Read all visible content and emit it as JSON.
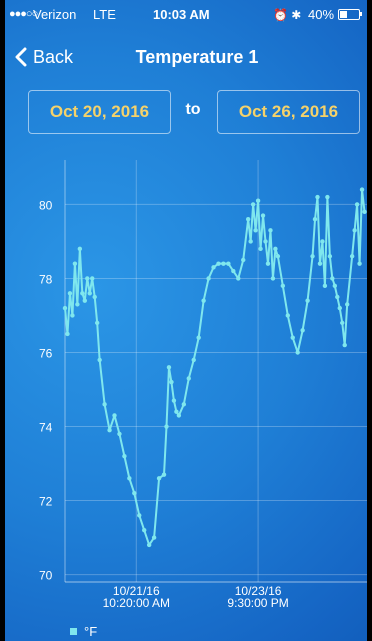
{
  "status_bar": {
    "signal": "●●●○○",
    "carrier": "Verizon",
    "network": "LTE",
    "time": "10:03 AM",
    "icons": "⏰ ✱",
    "battery": "40%",
    "battery_level": 0.4
  },
  "nav": {
    "back_label": "Back",
    "title": "Temperature 1"
  },
  "date_range": {
    "start": "Oct 20, 2016",
    "separator": "to",
    "end": "Oct 26, 2016"
  },
  "colors": {
    "accent_date": "#f5d26a",
    "series": "#7fe7ee",
    "text": "#ffffff"
  },
  "chart_data": {
    "type": "line",
    "ylim": [
      69.8,
      81.2
    ],
    "y_ticks": [
      70,
      72,
      74,
      76,
      78,
      80
    ],
    "x_ticks": [
      {
        "label": "10/21/16\n10:20:00 AM",
        "t": 1.44
      },
      {
        "label": "10/23/16\n9:30:00 PM",
        "t": 3.9
      }
    ],
    "xlim": [
      0,
      6.1
    ],
    "grid": true,
    "legend": "bottom-left",
    "series": [
      {
        "name": "°F",
        "x": [
          0.0,
          0.05,
          0.1,
          0.15,
          0.2,
          0.25,
          0.3,
          0.35,
          0.4,
          0.45,
          0.5,
          0.55,
          0.6,
          0.65,
          0.7,
          0.8,
          0.9,
          1.0,
          1.1,
          1.2,
          1.3,
          1.4,
          1.5,
          1.6,
          1.7,
          1.8,
          1.9,
          2.0,
          2.05,
          2.1,
          2.15,
          2.2,
          2.25,
          2.3,
          2.4,
          2.5,
          2.6,
          2.7,
          2.8,
          2.9,
          3.0,
          3.1,
          3.2,
          3.3,
          3.4,
          3.5,
          3.6,
          3.7,
          3.75,
          3.8,
          3.85,
          3.9,
          3.95,
          4.0,
          4.05,
          4.1,
          4.15,
          4.2,
          4.25,
          4.3,
          4.4,
          4.5,
          4.6,
          4.7,
          4.8,
          4.9,
          5.0,
          5.05,
          5.1,
          5.15,
          5.2,
          5.25,
          5.3,
          5.35,
          5.4,
          5.45,
          5.5,
          5.55,
          5.6,
          5.65,
          5.7,
          5.8,
          5.85,
          5.9,
          5.95,
          6.0,
          6.05
        ],
        "y": [
          77.2,
          76.5,
          77.6,
          77.0,
          78.4,
          77.3,
          78.8,
          77.6,
          77.4,
          78.0,
          77.6,
          78.0,
          77.5,
          76.8,
          75.8,
          74.6,
          73.9,
          74.3,
          73.8,
          73.2,
          72.6,
          72.2,
          71.6,
          71.2,
          70.8,
          71.0,
          72.6,
          72.7,
          74.0,
          75.6,
          75.2,
          74.7,
          74.4,
          74.3,
          74.6,
          75.3,
          75.8,
          76.4,
          77.4,
          78.0,
          78.3,
          78.4,
          78.4,
          78.4,
          78.2,
          78.0,
          78.5,
          79.6,
          79.0,
          80.0,
          79.3,
          80.1,
          78.8,
          79.7,
          79.0,
          78.4,
          79.3,
          78.0,
          78.8,
          78.6,
          77.8,
          77.0,
          76.4,
          76.0,
          76.6,
          77.4,
          78.6,
          79.6,
          80.2,
          78.4,
          79.0,
          77.8,
          80.2,
          78.6,
          78.0,
          77.8,
          77.5,
          77.2,
          76.8,
          76.2,
          77.3,
          78.6,
          79.3,
          80.0,
          78.4,
          80.4,
          79.8
        ]
      }
    ]
  }
}
